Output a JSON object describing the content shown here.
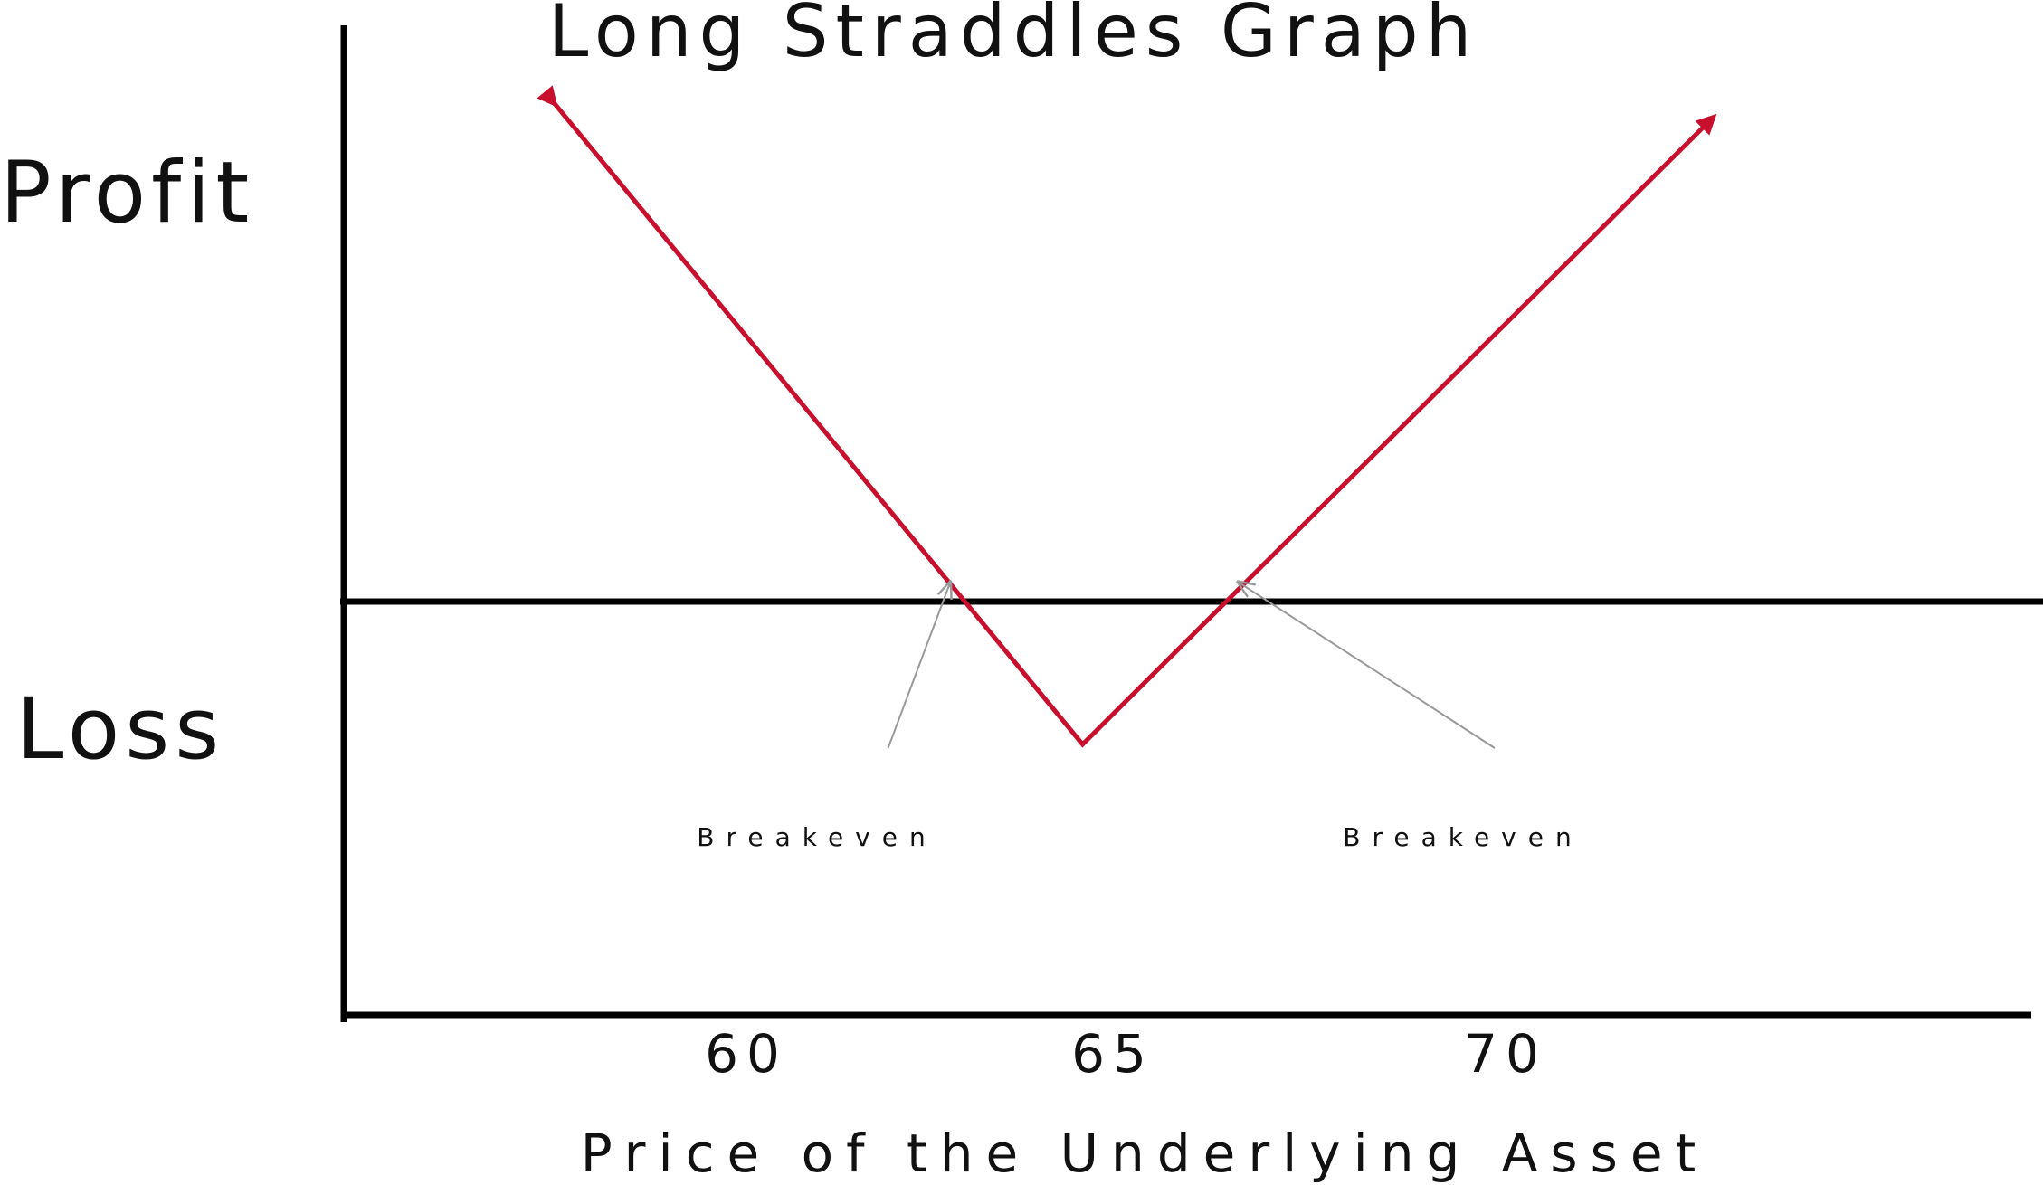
{
  "chart_data": {
    "type": "line",
    "title": "Long Straddles Graph",
    "xlabel": "Price of the Underlying Asset",
    "ylabel_top": "Profit",
    "ylabel_bottom": "Loss",
    "x_ticks": [
      "60",
      "65",
      "70"
    ],
    "xlim": [
      55.5,
      77.2
    ],
    "ylim": [
      -5.7,
      7.1
    ],
    "grid": false,
    "series": [
      {
        "color": "#c8102e",
        "x": [
          58.2,
          65.0,
          73.1
        ],
        "y": [
          6.1,
          -2.2,
          5.9
        ],
        "arrowheads": "both-ends"
      }
    ],
    "annotations": [
      {
        "text": "Breakeven",
        "x": 62.5,
        "y": -2.6,
        "arrow_to": {
          "x": 63.3,
          "y": -0.1
        }
      },
      {
        "text": "Breakeven",
        "x": 70.3,
        "y": -2.6,
        "arrow_to": {
          "x": 67.0,
          "y": -0.1
        }
      }
    ],
    "colors": {
      "axis": "#000000",
      "payoff": "#c8102e",
      "annotation_arrow": "#999999",
      "text": "#111111"
    }
  }
}
